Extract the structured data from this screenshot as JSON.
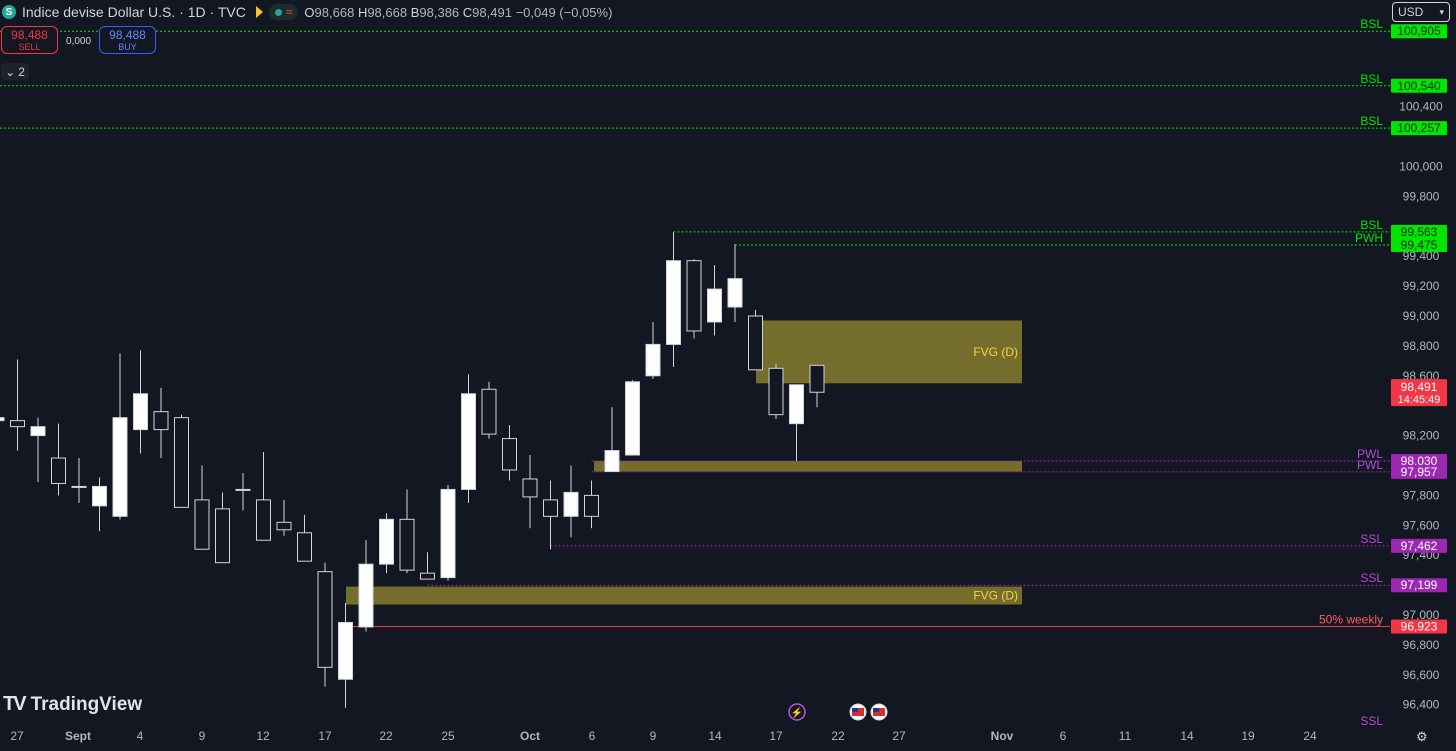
{
  "header": {
    "symbol_icon": "S",
    "title": "Indice devise Dollar U.S. · 1D · TVC",
    "status_icon": "≈",
    "ohlc": [
      {
        "k": "O",
        "v": "98,668"
      },
      {
        "k": "H",
        "v": "98,668"
      },
      {
        "k": "B",
        "v": "98,386"
      },
      {
        "k": "C",
        "v": "98,491"
      }
    ],
    "change": "−0,049 (−0,05%)"
  },
  "trade": {
    "sell_price": "98,488",
    "sell_label": "SELL",
    "spread": "0,000",
    "buy_price": "98,488",
    "buy_label": "BUY"
  },
  "indicators_toggle": "2",
  "currency_select": "USD",
  "brand": "TradingView",
  "colors": {
    "background": "#131722",
    "grid_text": "#b2b5be",
    "bsl": "#00e600",
    "pwl_ssl": "#9c27b0",
    "fvg": "#b5a632",
    "price": "#f23645"
  },
  "chart_data": {
    "type": "candlestick",
    "price_axis_ticks": [
      "100,400",
      "100,000",
      "99,800",
      "99,400",
      "99,200",
      "99,000",
      "98,800",
      "98,600",
      "98,200",
      "97,800",
      "97,600",
      "97,400",
      "97,000",
      "96,800",
      "96,600",
      "96,400"
    ],
    "time_axis_ticks": [
      "27",
      "Sept",
      "4",
      "9",
      "12",
      "17",
      "22",
      "25",
      "Oct",
      "6",
      "9",
      "14",
      "17",
      "22",
      "27",
      "Nov",
      "6",
      "11",
      "14",
      "19",
      "24"
    ],
    "candles": [
      {
        "o": 98.3,
        "h": 98.4,
        "l": 98.2,
        "c": 98.32
      },
      {
        "o": 98.3,
        "h": 98.71,
        "l": 98.1,
        "c": 98.26
      },
      {
        "o": 98.2,
        "h": 98.32,
        "l": 97.89,
        "c": 98.26
      },
      {
        "o": 98.05,
        "h": 98.28,
        "l": 97.8,
        "c": 97.88
      },
      {
        "o": 97.86,
        "h": 98.05,
        "l": 97.75,
        "c": 97.86
      },
      {
        "o": 97.73,
        "h": 97.92,
        "l": 97.56,
        "c": 97.86
      },
      {
        "o": 97.66,
        "h": 98.75,
        "l": 97.64,
        "c": 98.32
      },
      {
        "o": 98.24,
        "h": 98.77,
        "l": 98.08,
        "c": 98.48
      },
      {
        "o": 98.36,
        "h": 98.52,
        "l": 98.05,
        "c": 98.24
      },
      {
        "o": 98.32,
        "h": 98.34,
        "l": 97.72,
        "c": 97.72
      },
      {
        "o": 97.77,
        "h": 98.0,
        "l": 97.44,
        "c": 97.44
      },
      {
        "o": 97.71,
        "h": 97.82,
        "l": 97.35,
        "c": 97.35
      },
      {
        "o": 97.84,
        "h": 97.95,
        "l": 97.7,
        "c": 97.84
      },
      {
        "o": 97.77,
        "h": 98.09,
        "l": 97.5,
        "c": 97.5
      },
      {
        "o": 97.62,
        "h": 97.77,
        "l": 97.53,
        "c": 97.57
      },
      {
        "o": 97.55,
        "h": 97.67,
        "l": 97.36,
        "c": 97.36
      },
      {
        "o": 97.29,
        "h": 97.35,
        "l": 96.52,
        "c": 96.65
      },
      {
        "o": 96.57,
        "h": 97.08,
        "l": 96.38,
        "c": 96.95
      },
      {
        "o": 96.92,
        "h": 97.5,
        "l": 96.89,
        "c": 97.34
      },
      {
        "o": 97.34,
        "h": 97.68,
        "l": 97.28,
        "c": 97.64
      },
      {
        "o": 97.64,
        "h": 97.84,
        "l": 97.28,
        "c": 97.3
      },
      {
        "o": 97.28,
        "h": 97.42,
        "l": 97.24,
        "c": 97.24
      },
      {
        "o": 97.25,
        "h": 97.87,
        "l": 97.23,
        "c": 97.84
      },
      {
        "o": 97.84,
        "h": 98.61,
        "l": 97.75,
        "c": 98.48
      },
      {
        "o": 98.51,
        "h": 98.56,
        "l": 98.18,
        "c": 98.21
      },
      {
        "o": 98.18,
        "h": 98.27,
        "l": 97.9,
        "c": 97.97
      },
      {
        "o": 97.91,
        "h": 98.07,
        "l": 97.58,
        "c": 97.79
      },
      {
        "o": 97.77,
        "h": 97.9,
        "l": 97.44,
        "c": 97.66
      },
      {
        "o": 97.66,
        "h": 98.0,
        "l": 97.52,
        "c": 97.82
      },
      {
        "o": 97.8,
        "h": 97.9,
        "l": 97.58,
        "c": 97.66
      },
      {
        "o": 97.96,
        "h": 98.39,
        "l": 97.96,
        "c": 98.1
      },
      {
        "o": 98.07,
        "h": 98.57,
        "l": 98.07,
        "c": 98.56
      },
      {
        "o": 98.6,
        "h": 98.96,
        "l": 98.58,
        "c": 98.81
      },
      {
        "o": 98.81,
        "h": 99.56,
        "l": 98.66,
        "c": 99.37
      },
      {
        "o": 99.37,
        "h": 99.38,
        "l": 98.85,
        "c": 98.9
      },
      {
        "o": 98.96,
        "h": 99.34,
        "l": 98.87,
        "c": 99.18
      },
      {
        "o": 99.06,
        "h": 99.48,
        "l": 98.96,
        "c": 99.25
      },
      {
        "o": 99.0,
        "h": 99.04,
        "l": 98.64,
        "c": 98.64
      },
      {
        "o": 98.65,
        "h": 98.68,
        "l": 98.31,
        "c": 98.34
      },
      {
        "o": 98.28,
        "h": 98.54,
        "l": 98.03,
        "c": 98.54
      },
      {
        "o": 98.67,
        "h": 98.67,
        "l": 98.39,
        "c": 98.49
      }
    ],
    "zones": [
      {
        "label": "FVG (D)",
        "top": 98.97,
        "bottom": 98.55
      },
      {
        "label": "",
        "top": 98.03,
        "bottom": 97.96
      },
      {
        "label": "FVG (D)",
        "top": 97.19,
        "bottom": 97.07
      }
    ],
    "levels": [
      {
        "name": "BSL",
        "price": 100.905,
        "value": "100,905",
        "kind": "bsl",
        "start": 0
      },
      {
        "name": "BSL",
        "price": 100.54,
        "value": "100,540",
        "kind": "bsl",
        "start": 0
      },
      {
        "name": "BSL",
        "price": 100.257,
        "value": "100,257",
        "kind": "bsl",
        "start": 0
      },
      {
        "name": "BSL",
        "price": 99.563,
        "value": "99,563",
        "kind": "bsl",
        "start": 33
      },
      {
        "name": "PWH",
        "price": 99.475,
        "value": "99,475",
        "kind": "bsl",
        "start": 36
      },
      {
        "name": "PWL",
        "price": 98.03,
        "value": "98,030",
        "kind": "pwl",
        "start": 29
      },
      {
        "name": "PWL",
        "price": 97.957,
        "value": "97,957",
        "kind": "pwl",
        "start": 29
      },
      {
        "name": "SSL",
        "price": 97.462,
        "value": "97,462",
        "kind": "pwl",
        "start": 27
      },
      {
        "name": "SSL",
        "price": 97.199,
        "value": "97,199",
        "kind": "pwl",
        "start": 21
      },
      {
        "name": "50% weekly",
        "price": 96.923,
        "value": "96,923",
        "kind": "weekly",
        "start": 17
      }
    ],
    "last_price": {
      "value": "98,491",
      "countdown": "14:45:49",
      "price": 98.491
    },
    "bottom_label": "SSL",
    "events": [
      {
        "type": "lightning",
        "slot": 39
      },
      {
        "type": "us-flag",
        "slot": 42
      },
      {
        "type": "us-flag",
        "slot": 43
      }
    ]
  }
}
